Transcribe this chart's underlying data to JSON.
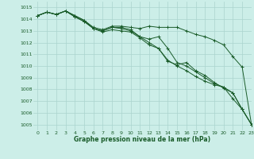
{
  "bg_color": "#cceee8",
  "grid_color": "#aad4ce",
  "line_color": "#1a5c2a",
  "marker_color": "#1a5c2a",
  "xlabel": "Graphe pression niveau de la mer (hPa)",
  "xlabel_color": "#1a5c2a",
  "tick_color": "#1a5c2a",
  "xlim": [
    -0.5,
    23
  ],
  "ylim": [
    1004.5,
    1015.5
  ],
  "yticks": [
    1005,
    1006,
    1007,
    1008,
    1009,
    1010,
    1011,
    1012,
    1013,
    1014,
    1015
  ],
  "xticks": [
    0,
    1,
    2,
    3,
    4,
    5,
    6,
    7,
    8,
    9,
    10,
    11,
    12,
    13,
    14,
    15,
    16,
    17,
    18,
    19,
    20,
    21,
    22,
    23
  ],
  "series": [
    [
      1014.3,
      1014.6,
      1014.4,
      1014.7,
      1014.2,
      1013.8,
      1013.2,
      1012.9,
      1013.1,
      1013.0,
      1012.9,
      1012.4,
      1011.8,
      1011.5,
      1010.4,
      1010.1,
      1010.3,
      1009.6,
      1009.2,
      1008.6,
      1008.1,
      1007.7,
      1006.3,
      1005.0
    ],
    [
      1014.3,
      1014.6,
      1014.4,
      1014.7,
      1014.2,
      1013.8,
      1013.2,
      1013.0,
      1013.3,
      1013.2,
      1013.0,
      1012.5,
      1012.0,
      1011.5,
      1010.5,
      1010.0,
      1009.6,
      1009.1,
      1008.7,
      1008.4,
      1008.2,
      1007.2,
      1006.3,
      1005.0
    ],
    [
      1014.3,
      1014.6,
      1014.4,
      1014.7,
      1014.3,
      1013.9,
      1013.2,
      1013.0,
      1013.3,
      1013.3,
      1013.1,
      1012.5,
      1012.3,
      1012.5,
      1011.5,
      1010.3,
      1010.0,
      1009.5,
      1009.0,
      1008.5,
      1008.2,
      1007.7,
      1006.3,
      1005.0
    ],
    [
      1014.3,
      1014.6,
      1014.4,
      1014.7,
      1014.3,
      1013.9,
      1013.3,
      1013.1,
      1013.4,
      1013.4,
      1013.3,
      1013.2,
      1013.4,
      1013.3,
      1013.3,
      1013.3,
      1013.0,
      1012.7,
      1012.5,
      1012.2,
      1011.8,
      1010.8,
      1009.9,
      1005.0
    ]
  ]
}
